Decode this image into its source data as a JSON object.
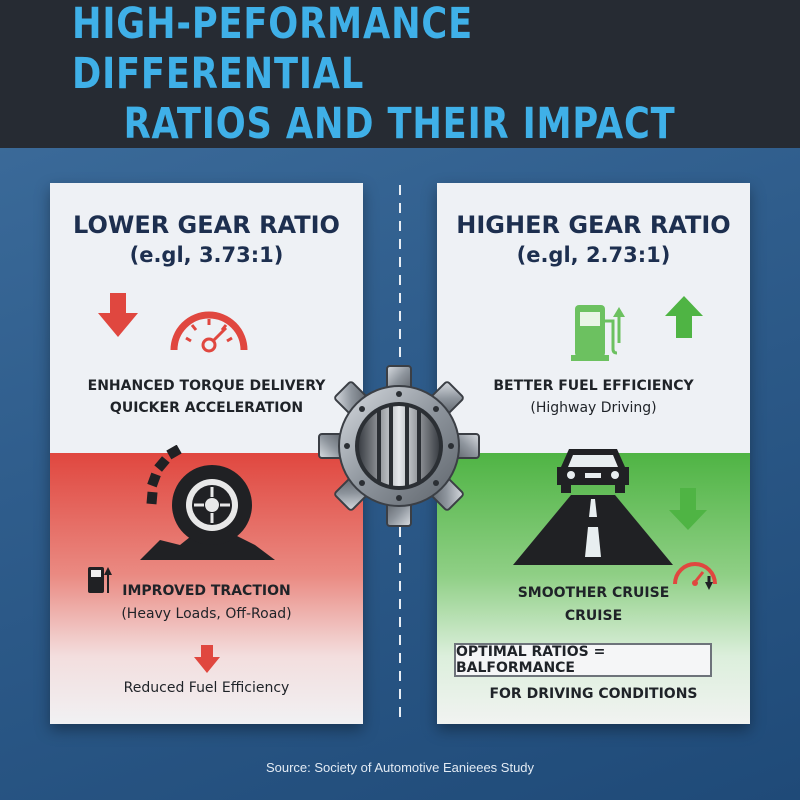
{
  "header": {
    "title_line1": "HIGH-PEFORMANCE DIFFERENTIAL",
    "title_line2": "RATIOS AND THEIR IMPACT"
  },
  "left_panel": {
    "title": "LOWER GEAR RATIO",
    "subtitle": "(e.gl, 3.73:1)",
    "benefit_line1": "ENHANCED TORQUE DELIVERY",
    "benefit_line2": "QUICKER ACCELERATION",
    "traction_title": "IMPROVED TRACTION",
    "traction_sub": "(Heavy Loads, Off-Road)",
    "drawback": "Reduced Fuel Efficiency"
  },
  "right_panel": {
    "title": "HIGHER GEAR RATIO",
    "subtitle": "(e.gl, 2.73:1)",
    "benefit_title": "BETTER FUEL EFFICIENCY",
    "benefit_sub": "(Highway Driving)",
    "cruise_line1": "SMOOTHER CRUISE",
    "cruise_line2": "CRUISE",
    "optimal": "OPTIMAL RATIOS = BALFORMANCE",
    "conditions": "FOR DRIVING CONDITIONS"
  },
  "source": "Source: Society of Automotive Eanieees Study",
  "colors": {
    "title_blue": "#3fb0e8",
    "red": "#e0473f",
    "green": "#4fb444",
    "navy_text": "#1d2f4f"
  },
  "icons": [
    "down-arrow-icon",
    "speedometer-icon",
    "tire-icon",
    "fuel-pump-icon",
    "up-arrow-icon",
    "car-icon",
    "road-icon",
    "gear-icon"
  ]
}
